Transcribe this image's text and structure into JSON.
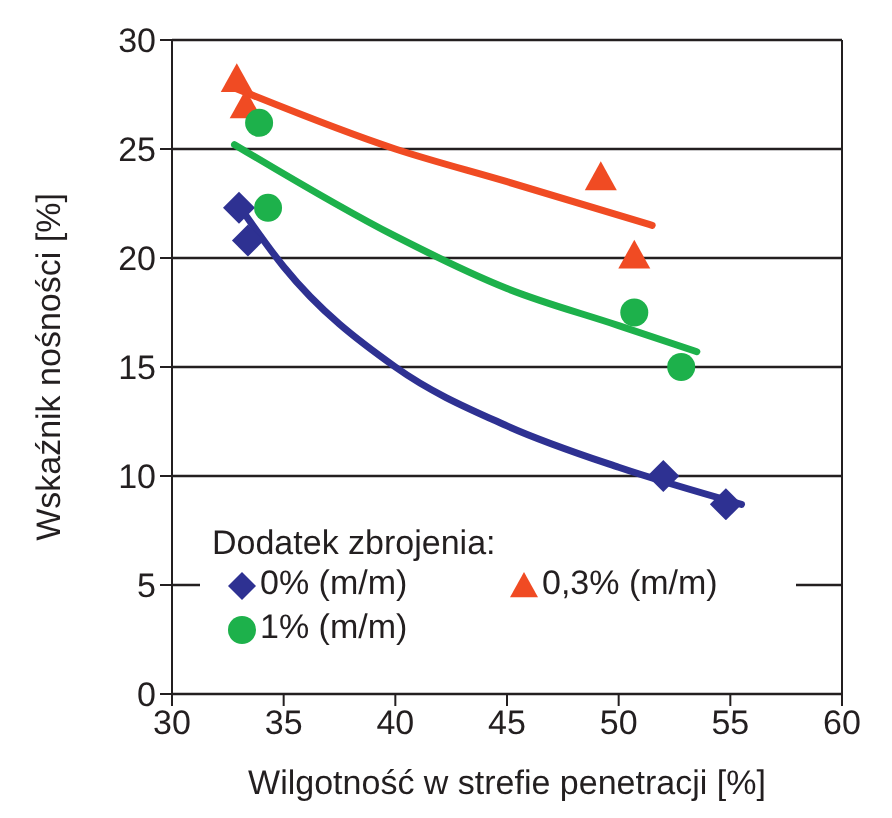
{
  "chart_data": {
    "type": "scatter",
    "xlabel": "Wilgotność w strefie penetracji [%]",
    "ylabel": "Wskaźnik nośności [%]",
    "legend_title": "Dodatek zbrojenia:",
    "xlim": [
      30,
      60
    ],
    "xticks": [
      30,
      35,
      40,
      45,
      50,
      55,
      60
    ],
    "ylim": [
      0,
      30
    ],
    "yticks": [
      0,
      5,
      10,
      15,
      20,
      25,
      30
    ],
    "grid": "y",
    "legend": "bottom left",
    "series": [
      {
        "type": "line",
        "color": "#2e3192",
        "marker": "none",
        "line_style": "solid",
        "x": [
          33,
          35,
          40,
          45,
          50,
          55.5
        ],
        "values": [
          22.4,
          19.6,
          15.0,
          12.3,
          10.4,
          8.7
        ]
      },
      {
        "type": "line",
        "color": "#f04b23",
        "marker": "none",
        "line_style": "solid",
        "x": [
          32.8,
          40,
          45,
          51.5
        ],
        "values": [
          27.8,
          25.0,
          23.5,
          21.5
        ]
      },
      {
        "type": "line",
        "color": "#1db14b",
        "marker": "none",
        "line_style": "solid",
        "x": [
          32.8,
          40,
          45,
          50,
          53.5
        ],
        "values": [
          25.2,
          21.0,
          18.6,
          16.9,
          15.7
        ]
      },
      {
        "type": "scatter",
        "name": "0% (m/m)",
        "color": "#2e3192",
        "marker": "diamond",
        "x": [
          33.0,
          33.4,
          52.0,
          54.8
        ],
        "values": [
          22.3,
          20.8,
          10.0,
          8.7
        ]
      },
      {
        "type": "scatter",
        "name": "0,3% (m/m)",
        "color": "#f04b23",
        "marker": "triangle",
        "x": [
          32.9,
          33.3,
          49.2,
          50.7
        ],
        "values": [
          28.2,
          27.0,
          23.7,
          20.1
        ]
      },
      {
        "type": "scatter",
        "name": "1% (m/m)",
        "color": "#1db14b",
        "marker": "circle",
        "x": [
          33.9,
          34.3,
          50.7,
          52.8
        ],
        "values": [
          26.2,
          22.3,
          17.5,
          15.0
        ]
      }
    ]
  }
}
